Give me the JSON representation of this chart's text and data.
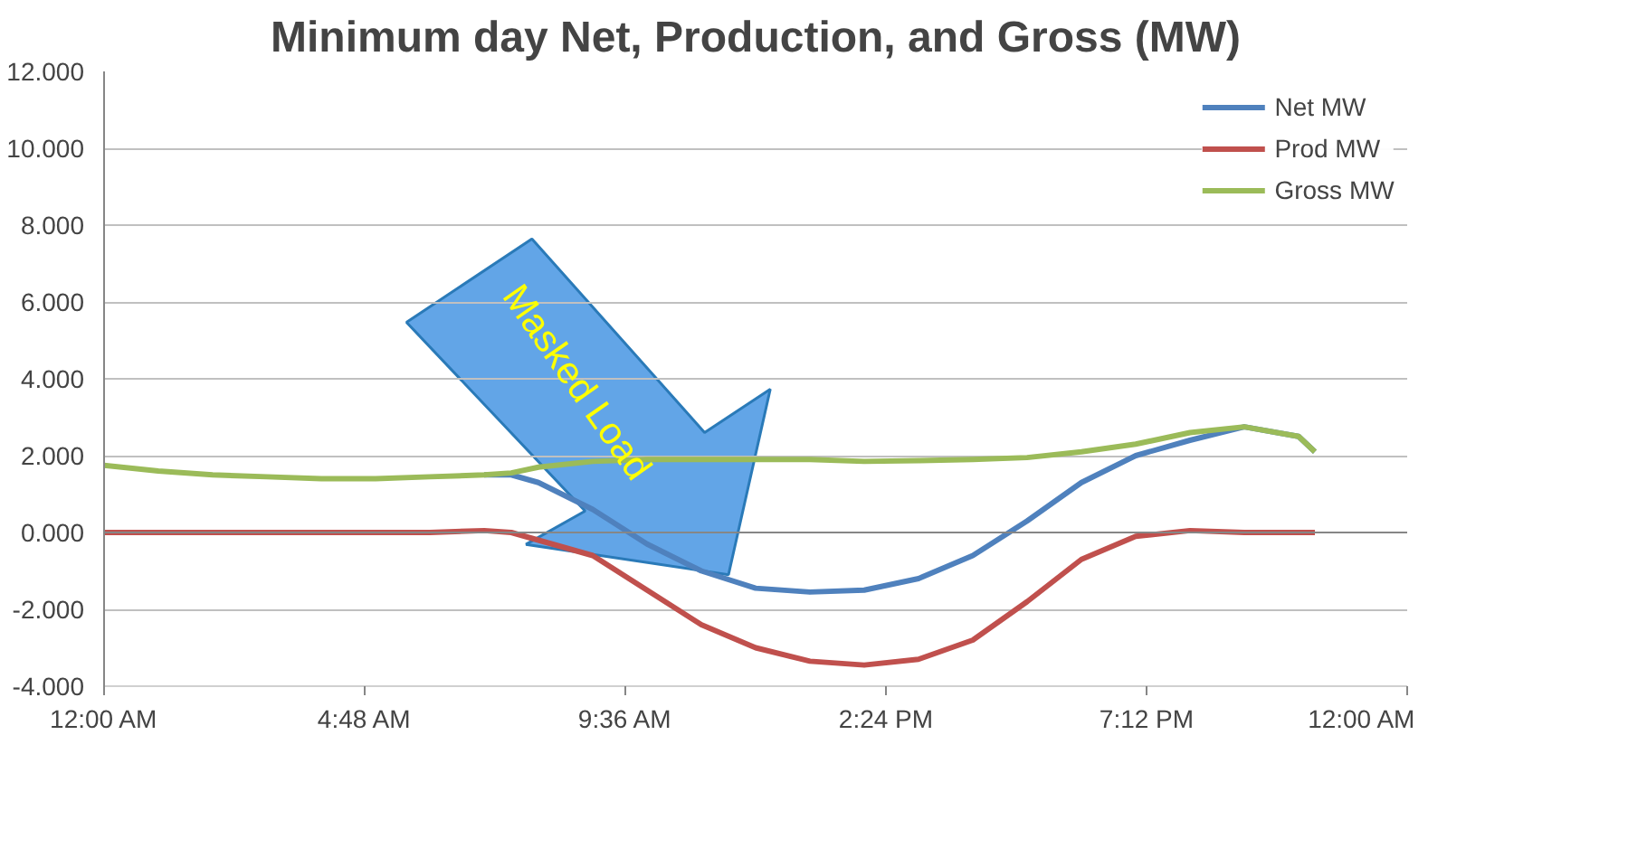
{
  "chart_data": {
    "type": "line",
    "title": "Minimum day Net, Production, and Gross (MW)",
    "x": [
      0,
      1,
      2,
      3,
      4,
      5,
      6,
      7,
      7.5,
      8,
      9,
      10,
      11,
      12,
      13,
      14,
      15,
      16,
      17,
      18,
      19,
      20,
      21,
      22,
      22.3
    ],
    "series": [
      {
        "name": "Net MW",
        "color": "#4f81bd",
        "values": [
          null,
          null,
          null,
          null,
          null,
          null,
          null,
          1.5,
          1.5,
          1.3,
          0.6,
          -0.3,
          -1.0,
          -1.45,
          -1.55,
          -1.5,
          -1.2,
          -0.6,
          0.3,
          1.3,
          2.0,
          2.4,
          2.75,
          2.5,
          2.1
        ]
      },
      {
        "name": "Prod MW",
        "color": "#c0504d",
        "values": [
          0,
          0,
          0,
          0,
          0,
          0,
          0,
          0.05,
          0,
          -0.2,
          -0.6,
          -1.5,
          -2.4,
          -3.0,
          -3.35,
          -3.45,
          -3.3,
          -2.8,
          -1.8,
          -0.7,
          -0.1,
          0.05,
          0,
          0,
          0
        ]
      },
      {
        "name": "Gross MW",
        "color": "#9bbb59",
        "values": [
          1.75,
          1.6,
          1.5,
          1.45,
          1.4,
          1.4,
          1.45,
          1.5,
          1.55,
          1.7,
          1.85,
          1.9,
          1.9,
          1.9,
          1.9,
          1.85,
          1.87,
          1.9,
          1.95,
          2.1,
          2.3,
          2.6,
          2.75,
          2.5,
          2.1
        ]
      }
    ],
    "xlim": [
      0,
      24
    ],
    "xticks": [
      {
        "value": 0,
        "label": "12:00 AM"
      },
      {
        "value": 4.8,
        "label": "4:48 AM"
      },
      {
        "value": 9.6,
        "label": "9:36 AM"
      },
      {
        "value": 14.4,
        "label": "2:24 PM"
      },
      {
        "value": 19.2,
        "label": "7:12 PM"
      },
      {
        "value": 24,
        "label": "12:00 AM"
      }
    ],
    "ylim": [
      -4,
      12
    ],
    "yticks": [
      {
        "value": -4,
        "label": "-4.000"
      },
      {
        "value": -2,
        "label": "-2.000"
      },
      {
        "value": 0,
        "label": "0.000"
      },
      {
        "value": 2,
        "label": "2.000"
      },
      {
        "value": 4,
        "label": "4.000"
      },
      {
        "value": 6,
        "label": "6.000"
      },
      {
        "value": 8,
        "label": "8.000"
      },
      {
        "value": 10,
        "label": "10.000"
      },
      {
        "value": 12,
        "label": "12.000"
      }
    ],
    "grid": "y",
    "legend": "top right",
    "marker": "none",
    "line_style": "solid",
    "annotations": [
      "Masked Load"
    ]
  }
}
